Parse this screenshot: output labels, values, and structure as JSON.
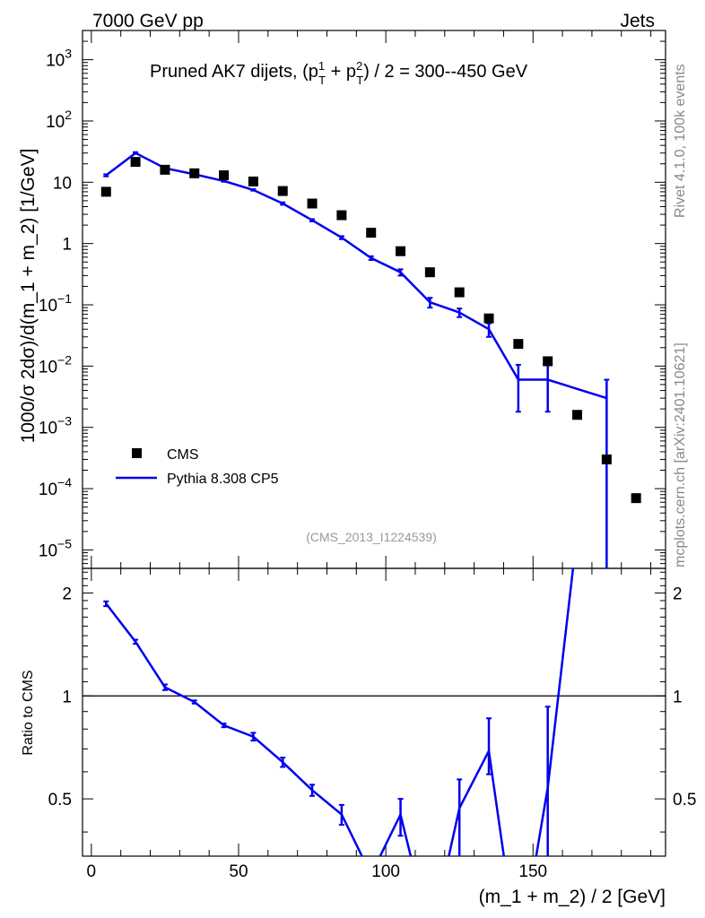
{
  "header": {
    "left": "7000 GeV pp",
    "right": "Jets"
  },
  "side_labels": {
    "version": "Rivet 4.1.0,  100k events",
    "source": "mcplots.cern.ch [arXiv:2401.10621]"
  },
  "analysis_id": "(CMS_2013_I1224539)",
  "chart_data": [
    {
      "type": "scatter",
      "panel": "main",
      "title_parts": {
        "pre": "Pruned AK7 dijets, (p",
        "sup1": "1",
        "sub1": "T",
        "mid": " + p",
        "sup2": "2",
        "sub2": "T",
        "post": ") / 2 = 300--450 GeV"
      },
      "ylabel": "1000/σ   2dσ)/d(m_1 + m_2) [1/GeV]",
      "yscale": "log",
      "ylim": [
        5e-06,
        3000
      ],
      "xlim": [
        -3,
        195
      ],
      "y_tick_labels": [
        {
          "v": 1000,
          "base": "10",
          "exp": "3"
        },
        {
          "v": 100,
          "base": "10",
          "exp": "2"
        },
        {
          "v": 10,
          "base": "10",
          "exp": ""
        },
        {
          "v": 1,
          "base": "1",
          "exp": ""
        },
        {
          "v": 0.1,
          "base": "10",
          "exp": "−1"
        },
        {
          "v": 0.01,
          "base": "10",
          "exp": "−2"
        },
        {
          "v": 0.001,
          "base": "10",
          "exp": "−3"
        },
        {
          "v": 0.0001,
          "base": "10",
          "exp": "−4"
        },
        {
          "v": 1e-05,
          "base": "10",
          "exp": "−5"
        }
      ],
      "legend_position": "lower-left",
      "series": [
        {
          "name": "CMS",
          "style": "markers",
          "color": "#000000",
          "points": [
            [
              5,
              7.0
            ],
            [
              15,
              21.5
            ],
            [
              25,
              16.0
            ],
            [
              35,
              14.0
            ],
            [
              45,
              13.0
            ],
            [
              55,
              10.3
            ],
            [
              65,
              7.2
            ],
            [
              75,
              4.5
            ],
            [
              85,
              2.9
            ],
            [
              95,
              1.5
            ],
            [
              105,
              0.75
            ],
            [
              115,
              0.34
            ],
            [
              125,
              0.16
            ],
            [
              135,
              0.06
            ],
            [
              145,
              0.023
            ],
            [
              155,
              0.012
            ],
            [
              165,
              0.0016
            ],
            [
              175,
              0.0003
            ],
            [
              185,
              7e-05
            ]
          ]
        },
        {
          "name": "Pythia 8.308 CP5",
          "style": "line",
          "color": "#0000ee",
          "points": [
            [
              5,
              13.0
            ],
            [
              15,
              30.0
            ],
            [
              25,
              17.0
            ],
            [
              35,
              13.5
            ],
            [
              45,
              10.5
            ],
            [
              55,
              7.5
            ],
            [
              65,
              4.5
            ],
            [
              75,
              2.4
            ],
            [
              85,
              1.25
            ],
            [
              95,
              0.58
            ],
            [
              105,
              0.34
            ],
            [
              115,
              0.11
            ],
            [
              125,
              0.075
            ],
            [
              135,
              0.04
            ],
            [
              145,
              0.006
            ],
            [
              155,
              0.006
            ],
            [
              175,
              0.003
            ]
          ],
          "errors": [
            [
              5,
              12.5,
              13.5
            ],
            [
              15,
              29.0,
              31.0
            ],
            [
              25,
              16.5,
              17.5
            ],
            [
              35,
              13.0,
              14.0
            ],
            [
              45,
              10.2,
              10.8
            ],
            [
              55,
              7.3,
              7.7
            ],
            [
              65,
              4.3,
              4.7
            ],
            [
              75,
              2.3,
              2.5
            ],
            [
              85,
              1.18,
              1.32
            ],
            [
              95,
              0.54,
              0.62
            ],
            [
              105,
              0.3,
              0.38
            ],
            [
              115,
              0.09,
              0.13
            ],
            [
              125,
              0.063,
              0.087
            ],
            [
              135,
              0.03,
              0.05
            ],
            [
              145,
              0.0018,
              0.0105
            ],
            [
              155,
              0.0018,
              0.0105
            ],
            [
              175,
              1e-06,
              0.006
            ]
          ]
        }
      ]
    },
    {
      "type": "line",
      "panel": "ratio",
      "ylabel": "Ratio to CMS",
      "xlabel": "(m_1 + m_2) / 2 [GeV]",
      "xlim": [
        -3,
        195
      ],
      "ylim": [
        0.34,
        2.36
      ],
      "x_ticks": [
        0,
        50,
        100,
        150
      ],
      "y_ticks": [
        0.5,
        1,
        2
      ],
      "reference_line": 1,
      "series": [
        {
          "name": "Pythia 8.308 CP5",
          "color": "#0000ee",
          "points": [
            [
              5,
              1.86
            ],
            [
              15,
              1.44
            ],
            [
              25,
              1.06
            ],
            [
              35,
              0.96
            ],
            [
              45,
              0.82
            ],
            [
              55,
              0.76
            ],
            [
              65,
              0.64
            ],
            [
              75,
              0.53
            ],
            [
              85,
              0.45
            ],
            [
              95,
              0.3
            ],
            [
              105,
              0.45
            ],
            [
              110,
              0.3
            ],
            [
              120,
              0.3
            ],
            [
              125,
              0.47
            ],
            [
              135,
              0.69
            ],
            [
              141,
              0.3
            ],
            [
              150,
              0.3
            ],
            [
              155,
              0.54
            ],
            [
              165,
              3.0
            ]
          ],
          "errors": [
            [
              5,
              1.83,
              1.89
            ],
            [
              15,
              1.42,
              1.46
            ],
            [
              25,
              1.04,
              1.08
            ],
            [
              35,
              0.95,
              0.97
            ],
            [
              45,
              0.81,
              0.83
            ],
            [
              55,
              0.74,
              0.78
            ],
            [
              65,
              0.62,
              0.66
            ],
            [
              75,
              0.51,
              0.55
            ],
            [
              85,
              0.42,
              0.48
            ],
            [
              105,
              0.39,
              0.5
            ],
            [
              125,
              0.3,
              0.57
            ],
            [
              135,
              0.59,
              0.86
            ],
            [
              155,
              0.3,
              0.93
            ]
          ]
        }
      ]
    }
  ]
}
